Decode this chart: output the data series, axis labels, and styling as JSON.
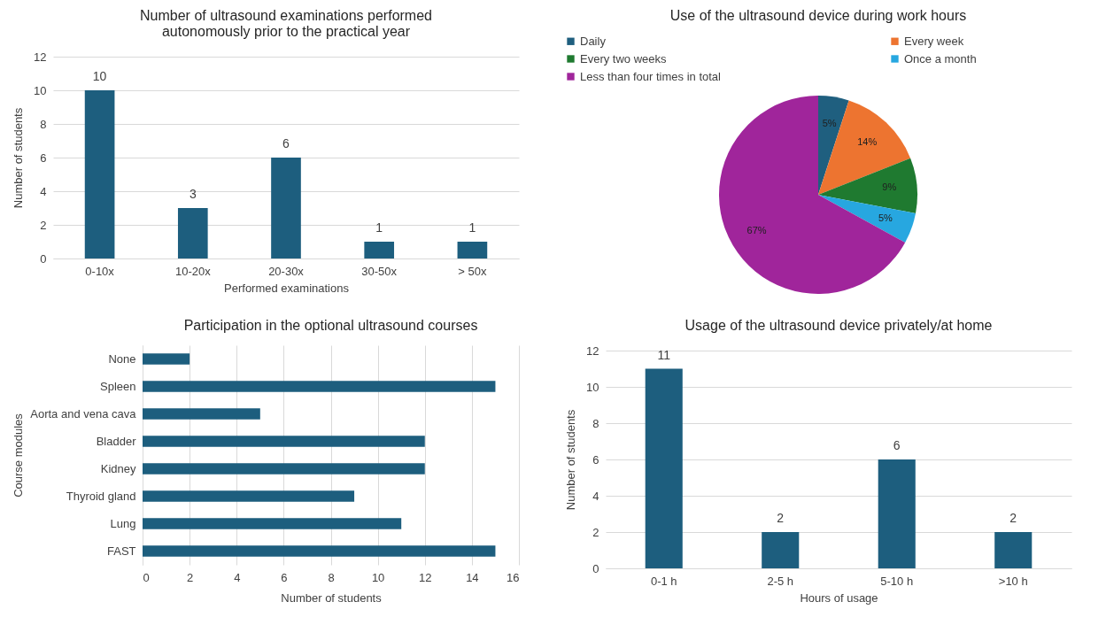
{
  "chart_data": [
    {
      "type": "bar",
      "title": "Number of ultrasound examinations performed autonomously prior to the practical year",
      "xlabel": "Performed  examinations",
      "ylabel": "Number of students",
      "categories": [
        "0-10x",
        "10-20x",
        "20-30x",
        "30-50x",
        "> 50x"
      ],
      "values": [
        10,
        3,
        6,
        1,
        1
      ],
      "color": "#1d5e7e",
      "ylim": [
        0,
        12
      ],
      "yticks": [
        0,
        2,
        4,
        6,
        8,
        10,
        12
      ],
      "grid": "y",
      "data_labels": true
    },
    {
      "type": "pie",
      "title": "Use of the ultrasound device during work hours",
      "categories": [
        "Daily",
        "Every week",
        "Every two weeks",
        "Once a month",
        "Less than four times in total"
      ],
      "values": [
        5,
        14,
        9,
        5,
        67
      ],
      "colors": [
        "#1f5f7f",
        "#ed7430",
        "#1f7a30",
        "#27a7e0",
        "#a0259b"
      ],
      "value_labels": [
        "5%",
        "14%",
        "9%",
        "5%",
        "67%"
      ],
      "legend": "top"
    },
    {
      "type": "bar",
      "orientation": "horizontal",
      "title": "Participation in the optional ultrasound courses",
      "xlabel": "Number of students",
      "ylabel": "Course modules",
      "categories": [
        "None",
        "Spleen",
        "Aorta and vena cava",
        "Bladder",
        "Kidney",
        "Thyroid gland",
        "Lung",
        "FAST"
      ],
      "values": [
        2,
        15,
        5,
        12,
        12,
        9,
        11,
        15
      ],
      "color": "#1d5e7e",
      "xlim": [
        0,
        16
      ],
      "xticks": [
        0,
        2,
        4,
        6,
        8,
        10,
        12,
        14,
        16
      ],
      "grid": "x"
    },
    {
      "type": "bar",
      "title": "Usage of the ultrasound device privately/at home",
      "xlabel": "Hours  of usage",
      "ylabel": "Number of students",
      "categories": [
        "0-1 h",
        "2-5 h",
        "5-10 h",
        ">10 h"
      ],
      "values": [
        11,
        2,
        6,
        2
      ],
      "color": "#1d5e7e",
      "ylim": [
        0,
        12
      ],
      "yticks": [
        0,
        2,
        4,
        6,
        8,
        10,
        12
      ],
      "grid": "y",
      "data_labels": true
    }
  ]
}
